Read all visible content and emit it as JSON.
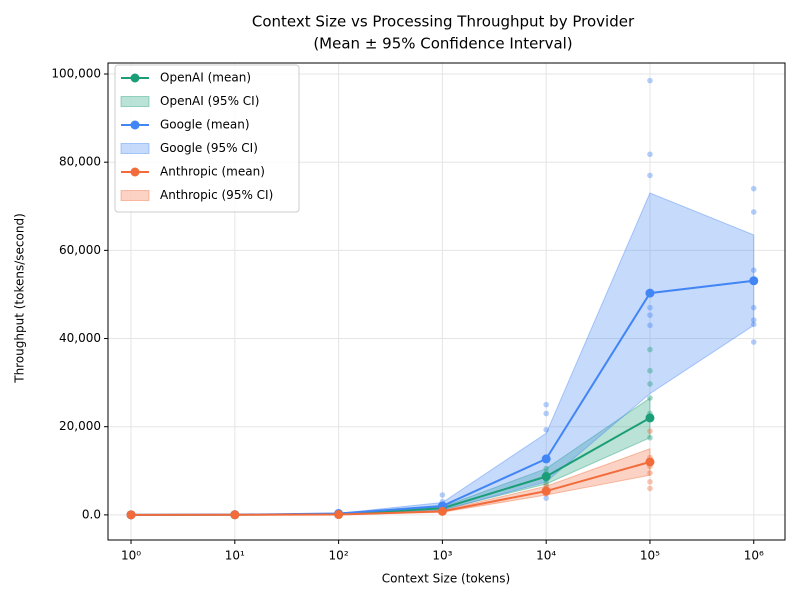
{
  "chart_data": {
    "type": "line",
    "title": "Context Size vs Processing Throughput by Provider",
    "subtitle": "(Mean ± 95% Confidence Interval)",
    "x_label": "Context Size (tokens)",
    "y_label": "Throughput (tokens/second)",
    "xscale": "log",
    "xlim": [
      0.6,
      2000000
    ],
    "ylim": [
      -5700,
      102500
    ],
    "xticks": [
      {
        "value": 1,
        "label": "10⁰"
      },
      {
        "value": 10,
        "label": "10¹"
      },
      {
        "value": 100,
        "label": "10²"
      },
      {
        "value": 1000,
        "label": "10³"
      },
      {
        "value": 10000,
        "label": "10⁴"
      },
      {
        "value": 100000,
        "label": "10⁵"
      },
      {
        "value": 1000000,
        "label": "10⁶"
      }
    ],
    "yticks": [
      {
        "value": 0,
        "label": "0.0"
      },
      {
        "value": 20000,
        "label": "20,000"
      },
      {
        "value": 40000,
        "label": "40,000"
      },
      {
        "value": 60000,
        "label": "60,000"
      },
      {
        "value": 80000,
        "label": "80,000"
      },
      {
        "value": 100000,
        "label": "100,000"
      }
    ],
    "grid": true,
    "legend": "upper left",
    "series": [
      {
        "name": "OpenAI (mean)",
        "ci_name": "OpenAI (95% CI)",
        "color": "#1b9e77",
        "x": [
          1,
          10,
          100,
          1000,
          10000,
          100000
        ],
        "values": [
          10,
          20,
          150,
          1500,
          8700,
          22000
        ],
        "lower": [
          8,
          15,
          120,
          1200,
          7000,
          17500
        ],
        "upper": [
          12,
          25,
          180,
          1800,
          10500,
          26500
        ],
        "samples_x": [
          10000,
          10000,
          10000,
          10000,
          100000,
          100000,
          100000,
          100000,
          100000,
          100000
        ],
        "samples": [
          10500,
          9500,
          8000,
          7000,
          37500,
          32700,
          29700,
          26500,
          23000,
          17500
        ]
      },
      {
        "name": "Google (mean)",
        "ci_name": "Google (95% CI)",
        "color": "#4285f4",
        "x": [
          1,
          10,
          100,
          1000,
          10000,
          100000,
          1000000
        ],
        "values": [
          10,
          50,
          300,
          2000,
          12700,
          50300,
          53100
        ],
        "lower": [
          8,
          40,
          250,
          1000,
          7500,
          27500,
          43000
        ],
        "upper": [
          12,
          60,
          350,
          2800,
          18500,
          73000,
          63500
        ],
        "samples_x": [
          1000,
          1000,
          10000,
          10000,
          10000,
          10000,
          100000,
          100000,
          100000,
          100000,
          100000,
          100000,
          1000000,
          1000000,
          1000000,
          1000000,
          1000000,
          1000000,
          1000000
        ],
        "samples": [
          4500,
          3000,
          25000,
          23000,
          19300,
          3800,
          98500,
          81800,
          77000,
          47000,
          45300,
          43000,
          74000,
          68700,
          55500,
          47000,
          44200,
          43200,
          39200
        ]
      },
      {
        "name": "Anthropic (mean)",
        "ci_name": "Anthropic (95% CI)",
        "color": "#f26b3a",
        "x": [
          1,
          10,
          100,
          1000,
          10000,
          100000
        ],
        "values": [
          5,
          15,
          80,
          800,
          5400,
          12000
        ],
        "lower": [
          4,
          12,
          60,
          600,
          4500,
          9000
        ],
        "upper": [
          6,
          18,
          100,
          1000,
          6500,
          15000
        ],
        "samples_x": [
          10000,
          10000,
          10000,
          100000,
          100000,
          100000,
          100000,
          100000,
          100000
        ],
        "samples": [
          6500,
          5500,
          4800,
          19000,
          13000,
          11000,
          9500,
          7500,
          6000
        ]
      }
    ]
  }
}
